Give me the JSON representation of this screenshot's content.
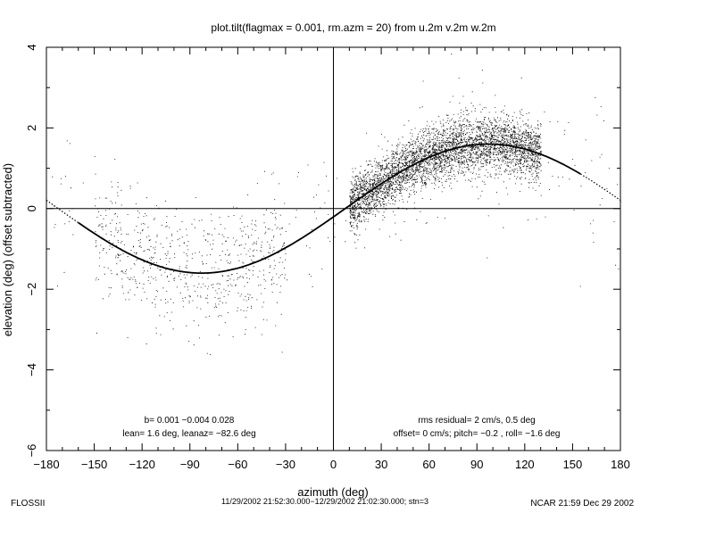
{
  "chart_data": {
    "type": "scatter",
    "title": "plot.tilt(flagmax = 0.001, rm.azm = 20) from u.2m v.2m w.2m",
    "xlabel": "azimuth (deg)",
    "ylabel": "elevation (deg)  (offset subtracted)",
    "xlim": [
      -180,
      180
    ],
    "ylim": [
      -6,
      4
    ],
    "xticks": [
      -180,
      -150,
      -120,
      -90,
      -60,
      -30,
      0,
      30,
      60,
      90,
      120,
      150,
      180
    ],
    "yticks": [
      -6,
      -4,
      -2,
      0,
      2,
      4
    ],
    "xtick_labels": [
      "−180",
      "−150",
      "−120",
      "−90",
      "−60",
      "−30",
      "0",
      "30",
      "60",
      "90",
      "120",
      "150",
      "180"
    ],
    "ytick_labels": [
      "−6",
      "−4",
      "−2",
      "0",
      "2",
      "4"
    ],
    "grid": false,
    "reference_lines": {
      "x": 0,
      "y": 0
    },
    "fit_curve": {
      "description": "fitted tilt curve",
      "amplitude_deg": 1.6,
      "peak_azimuth_deg": 97.4,
      "offset_deg": 0
    },
    "scatter_clusters": [
      {
        "x_range": [
          -150,
          -30
        ],
        "center_y": -1.4,
        "spread": 0.7,
        "points": 600
      },
      {
        "x_range": [
          10,
          130
        ],
        "center_y": 1.25,
        "spread": 0.35,
        "points": 4500
      },
      {
        "x_range": [
          -180,
          180
        ],
        "center_y": 0,
        "spread": 1.6,
        "points": 300
      }
    ],
    "annotations": [
      {
        "id": "b",
        "text": "b=  0.001 −0.004  0.028"
      },
      {
        "id": "lean",
        "text": "lean= 1.6 deg, leanaz= −82.6 deg"
      },
      {
        "id": "rms",
        "text": "rms residual= 2 cm/s, 0.5 deg"
      },
      {
        "id": "offset",
        "text": "offset= 0 cm/s; pitch= −0.2 , roll= −1.6 deg"
      }
    ]
  },
  "footer": {
    "left": "FLOSSII",
    "center": "11/29/2002 21:52:30.000−12/29/2002 21:02:30.000; stn=3",
    "right": "NCAR 21:59 Dec 29 2002"
  }
}
